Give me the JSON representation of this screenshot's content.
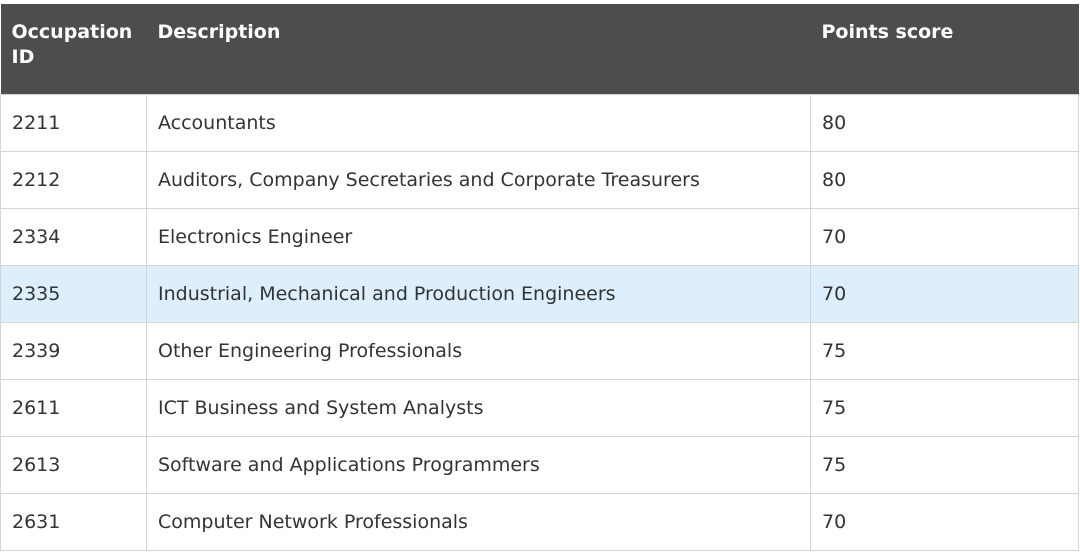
{
  "table": {
    "headers": {
      "id": "Occupation ID",
      "description": "Description",
      "score": "Points score"
    },
    "rows": [
      {
        "id": "2211",
        "description": "Accountants",
        "score": "80"
      },
      {
        "id": "2212",
        "description": "Auditors, Company Secretaries and Corporate Treasurers",
        "score": "80"
      },
      {
        "id": "2334",
        "description": "Electronics Engineer",
        "score": "70"
      },
      {
        "id": "2335",
        "description": "Industrial, Mechanical and Production Engineers",
        "score": "70"
      },
      {
        "id": "2339",
        "description": "Other Engineering Professionals",
        "score": "75"
      },
      {
        "id": "2611",
        "description": "ICT Business and System Analysts",
        "score": "75"
      },
      {
        "id": "2613",
        "description": "Software and Applications Programmers",
        "score": "75"
      },
      {
        "id": "2631",
        "description": "Computer Network Professionals",
        "score": "70"
      }
    ],
    "highlight_color": "#ddeefc",
    "header_bg": "#4d4d4d"
  }
}
